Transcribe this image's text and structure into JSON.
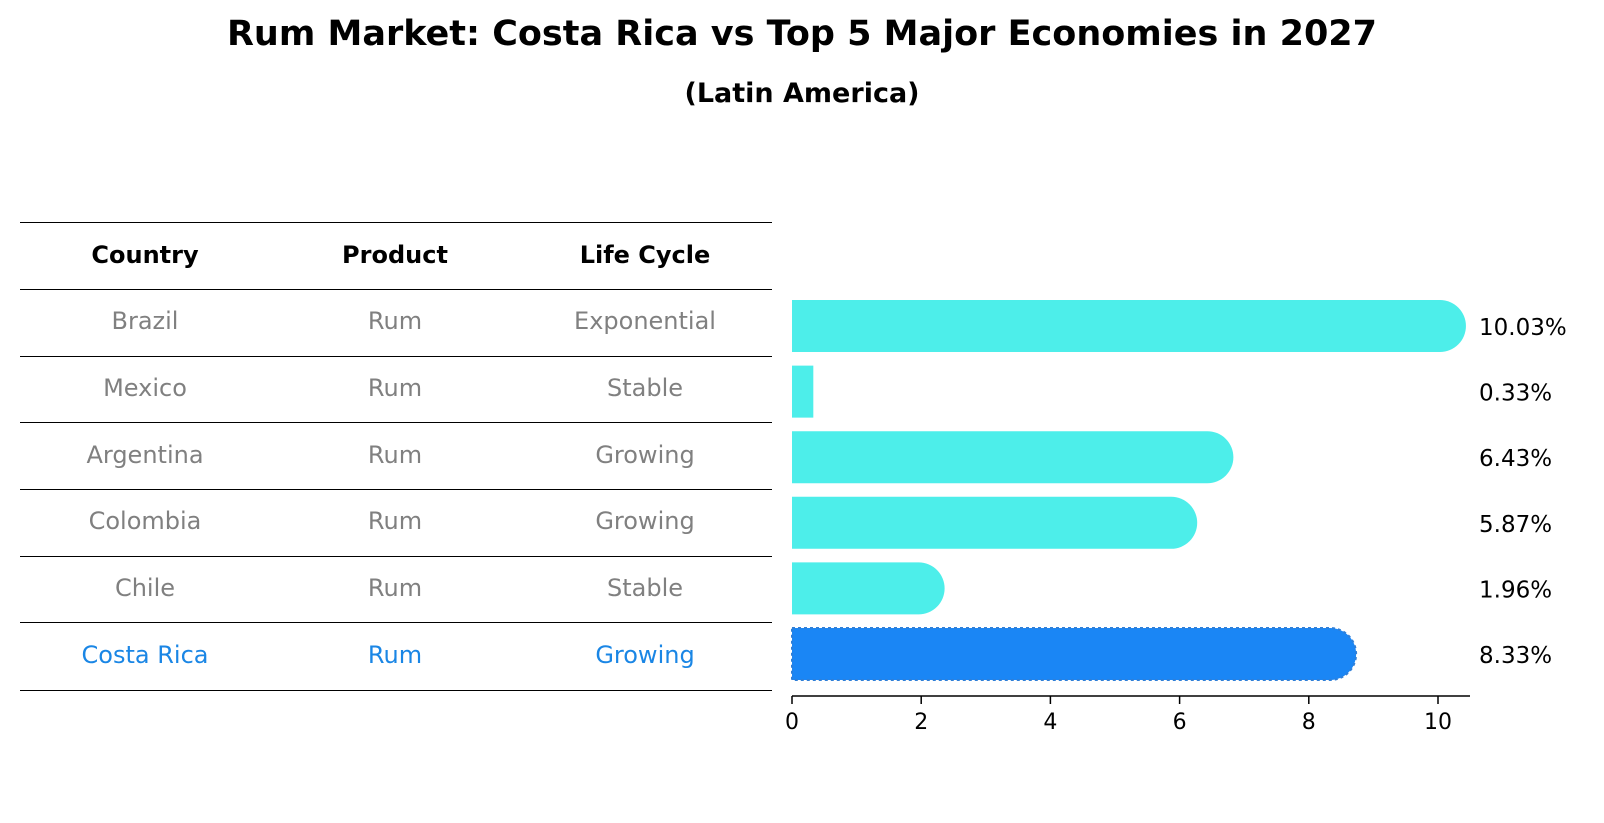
{
  "title": "Rum Market: Costa Rica vs Top 5 Major Economies in 2027",
  "subtitle": "(Latin America)",
  "colors": {
    "bar": "#4deeea",
    "highlight": "#1a86f5",
    "highlight_text": "#1a86e5",
    "muted_text": "#808080"
  },
  "table": {
    "headers": [
      "Country",
      "Product",
      "Life Cycle"
    ],
    "rows": [
      [
        "Brazil",
        "Rum",
        "Exponential"
      ],
      [
        "Mexico",
        "Rum",
        "Stable"
      ],
      [
        "Argentina",
        "Rum",
        "Growing"
      ],
      [
        "Colombia",
        "Rum",
        "Growing"
      ],
      [
        "Chile",
        "Rum",
        "Stable"
      ],
      [
        "Costa Rica",
        "Rum",
        "Growing"
      ]
    ],
    "highlight_row": 5
  },
  "chart_data": {
    "type": "bar",
    "orientation": "horizontal",
    "categories": [
      "Brazil",
      "Mexico",
      "Argentina",
      "Colombia",
      "Chile",
      "Costa Rica"
    ],
    "values": [
      10.03,
      0.33,
      6.43,
      5.87,
      1.96,
      8.33
    ],
    "data_labels": [
      "10.03%",
      "0.33%",
      "6.43%",
      "5.87%",
      "1.96%",
      "8.33%"
    ],
    "highlight": "Costa Rica",
    "xlim": [
      0,
      10.5
    ],
    "xticks": [
      0,
      2,
      4,
      6,
      8,
      10
    ],
    "xlabel": "",
    "ylabel": "",
    "grid": false
  }
}
